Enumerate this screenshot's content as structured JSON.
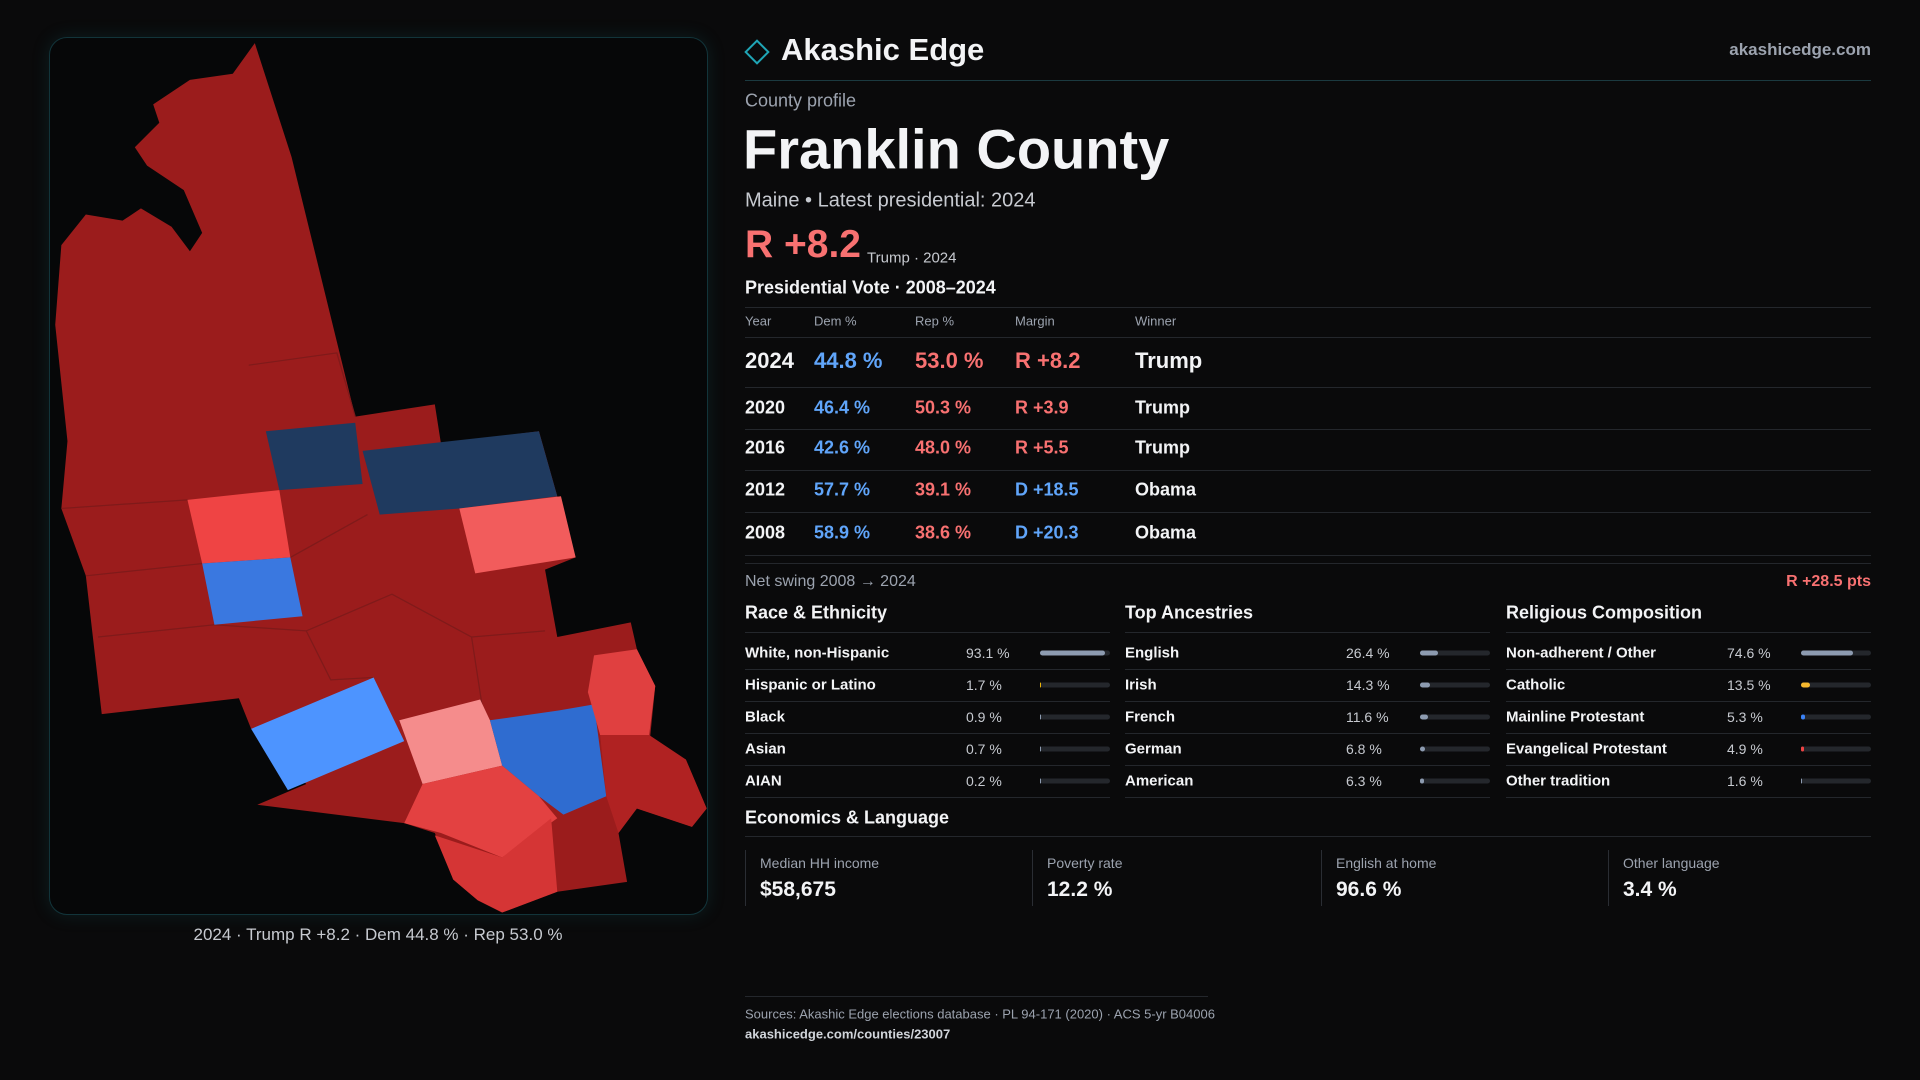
{
  "header": {
    "brand": "Akashic Edge",
    "site": "akashicedge.com"
  },
  "map_caption": "2024 · Trump R +8.2 · Dem 44.8 % · Rep 53.0 %",
  "profile": {
    "kicker": "County profile",
    "title": "Franklin County",
    "subtitle": "Maine • Latest presidential: 2024",
    "margin": "R +8.2",
    "margin_note": "Trump · 2024"
  },
  "vote_table": {
    "title": "Presidential Vote · 2008–2024",
    "columns": [
      "Year",
      "Dem %",
      "Rep %",
      "Margin",
      "Winner"
    ],
    "rows": [
      [
        "2024",
        "44.8 %",
        "53.0 %",
        "R +8.2",
        "Trump"
      ],
      [
        "2020",
        "46.4 %",
        "50.3 %",
        "R +3.9",
        "Trump"
      ],
      [
        "2016",
        "42.6 %",
        "48.0 %",
        "R +5.5",
        "Trump"
      ],
      [
        "2012",
        "57.7 %",
        "39.1 %",
        "D +18.5",
        "Obama"
      ],
      [
        "2008",
        "58.9 %",
        "38.6 %",
        "D +20.3",
        "Obama"
      ]
    ]
  },
  "swing": {
    "label": "Net swing 2008 → 2024",
    "value": "R +28.5 pts"
  },
  "sections": [
    {
      "title": "Race & Ethnicity",
      "items": [
        {
          "name": "White, non-Hispanic",
          "value": 93.1,
          "label": "93.1 %",
          "color": "#8d9bb0"
        },
        {
          "name": "Hispanic or Latino",
          "value": 1.7,
          "label": "1.7 %",
          "color": "#eab308"
        },
        {
          "name": "Black",
          "value": 0.9,
          "label": "0.9 %",
          "color": "#8d9bb0"
        },
        {
          "name": "Asian",
          "value": 0.7,
          "label": "0.7 %",
          "color": "#8d9bb0"
        },
        {
          "name": "AIAN",
          "value": 0.2,
          "label": "0.2 %",
          "color": "#8d9bb0"
        }
      ]
    },
    {
      "title": "Top Ancestries",
      "items": [
        {
          "name": "English",
          "value": 26.4,
          "label": "26.4 %",
          "color": "#8d9bb0"
        },
        {
          "name": "Irish",
          "value": 14.3,
          "label": "14.3 %",
          "color": "#8d9bb0"
        },
        {
          "name": "French",
          "value": 11.6,
          "label": "11.6 %",
          "color": "#8d9bb0"
        },
        {
          "name": "German",
          "value": 6.8,
          "label": "6.8 %",
          "color": "#8d9bb0"
        },
        {
          "name": "American",
          "value": 6.3,
          "label": "6.3 %",
          "color": "#8d9bb0"
        }
      ]
    },
    {
      "title": "Religious Composition",
      "items": [
        {
          "name": "Non-adherent / Other",
          "value": 74.6,
          "label": "74.6 %",
          "color": "#8d9bb0"
        },
        {
          "name": "Catholic",
          "value": 13.5,
          "label": "13.5 %",
          "color": "#f5b82e"
        },
        {
          "name": "Mainline Protestant",
          "value": 5.3,
          "label": "5.3 %",
          "color": "#3b82f6"
        },
        {
          "name": "Evangelical Protestant",
          "value": 4.9,
          "label": "4.9 %",
          "color": "#ef4444"
        },
        {
          "name": "Other tradition",
          "value": 1.6,
          "label": "1.6 %",
          "color": "#8d9bb0"
        }
      ]
    }
  ],
  "economics": {
    "title": "Economics & Language",
    "stats": [
      {
        "label": "Median HH income",
        "value": "$58,675"
      },
      {
        "label": "Poverty rate",
        "value": "12.2 %"
      },
      {
        "label": "English at home",
        "value": "96.6 %"
      },
      {
        "label": "Other language",
        "value": "3.4 %"
      }
    ]
  },
  "footer": {
    "sources": "Sources: Akashic Edge elections database · PL 94-171 (2020) · ACS 5-yr B04006",
    "url": "akashicedge.com/counties/23007"
  }
}
